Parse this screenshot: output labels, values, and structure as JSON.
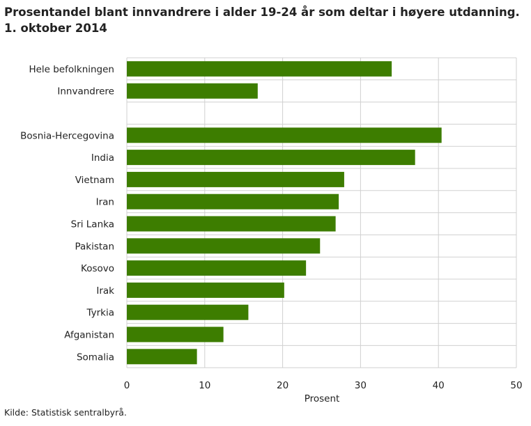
{
  "title": "Prosentandel blant innvandrere i alder 19-24 år som deltar i høyere utdanning. 1. oktober 2014",
  "source": "Kilde: Statistisk sentralbyrå.",
  "colors": {
    "bar": "#3d7d00",
    "grid": "#d0d0d0",
    "text": "#222222"
  },
  "chart_data": {
    "type": "bar",
    "orientation": "horizontal",
    "title": "Prosentandel blant innvandrere i alder 19-24 år som deltar i høyere utdanning. 1. oktober 2014",
    "xlabel": "Prosent",
    "ylabel": "",
    "xlim": [
      0,
      50
    ],
    "xticks": [
      0,
      10,
      20,
      30,
      40,
      50
    ],
    "grid": true,
    "categories": [
      "Hele befolkningen",
      "Innvandrere",
      "",
      "Bosnia-Hercegovina",
      "India",
      "Vietnam",
      "Iran",
      "Sri Lanka",
      "Pakistan",
      "Kosovo",
      "Irak",
      "Tyrkia",
      "Afganistan",
      "Somalia"
    ],
    "values": [
      34.0,
      16.8,
      null,
      40.4,
      37.0,
      27.9,
      27.2,
      26.8,
      24.8,
      23.0,
      20.2,
      15.6,
      12.4,
      9.0
    ]
  }
}
